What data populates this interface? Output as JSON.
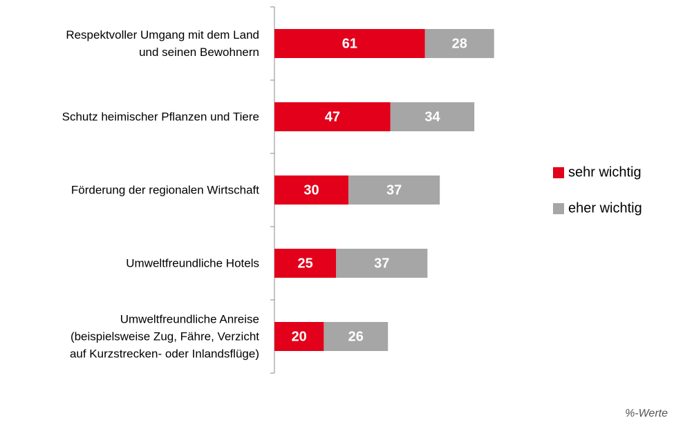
{
  "chart_data": {
    "type": "bar",
    "orientation": "horizontal",
    "stacked": true,
    "categories": [
      "Respektvoller Umgang mit dem Land\nund seinen Bewohnern",
      "Schutz heimischer Pflanzen und Tiere",
      "Förderung der regionalen Wirtschaft",
      "Umweltfreundliche Hotels",
      "Umweltfreundliche Anreise\n(beispielsweise Zug, Fähre, Verzicht\nauf Kurzstrecken- oder Inlandsflüge)"
    ],
    "series": [
      {
        "name": "sehr wichtig",
        "color": "#e2001a",
        "values": [
          61,
          47,
          30,
          25,
          20
        ]
      },
      {
        "name": "eher wichtig",
        "color": "#a6a6a6",
        "values": [
          28,
          34,
          37,
          37,
          26
        ]
      }
    ],
    "legend": "right",
    "annotation": "%-Werte"
  }
}
